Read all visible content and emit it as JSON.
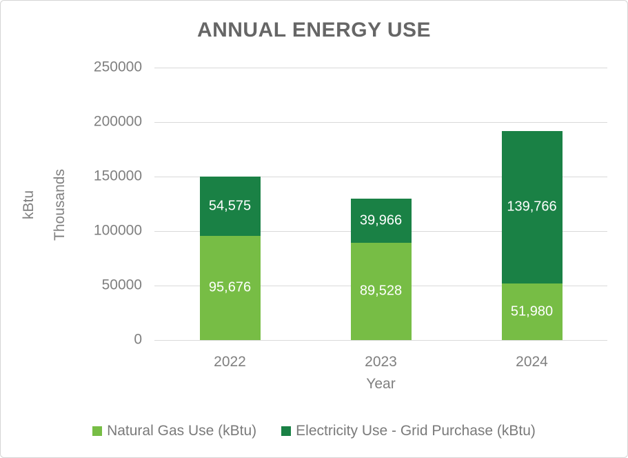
{
  "chart_data": {
    "type": "bar",
    "stacked": true,
    "title": "ANNUAL ENERGY USE",
    "xlabel": "Year",
    "ylabel": "kBtu",
    "ylabel_secondary": "Thousands",
    "categories": [
      "2022",
      "2023",
      "2024"
    ],
    "series": [
      {
        "name": "Natural Gas Use (kBtu)",
        "color": "#77BD45",
        "values": [
          95676,
          89528,
          51980
        ],
        "data_labels": [
          "95,676",
          "89,528",
          "51,980"
        ]
      },
      {
        "name": "Electricity Use - Grid Purchase (kBtu)",
        "color": "#1A8145",
        "values": [
          54575,
          39966,
          139766
        ],
        "data_labels": [
          "54,575",
          "39,966",
          "139,766"
        ]
      }
    ],
    "ylim": [
      0,
      250000
    ],
    "yticks": [
      0,
      50000,
      100000,
      150000,
      200000,
      250000
    ],
    "grid": true,
    "legend_position": "bottom",
    "data_label_color": "#FFFFFF"
  },
  "style": {
    "title_color": "#666666",
    "axis_text_color": "#7F7F7F",
    "gridline_color": "#D9D9D9",
    "frame_border_color": "#D4D4D4",
    "background_color": "#FFFFFF"
  }
}
